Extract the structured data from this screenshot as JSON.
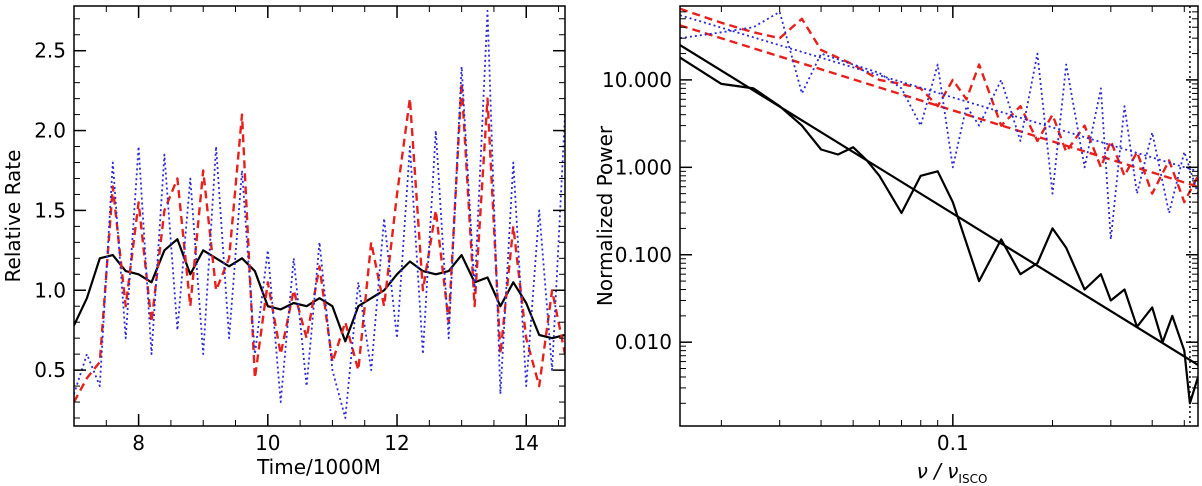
{
  "colors": {
    "black": "#000000",
    "red": "#e8201c",
    "blue": "#2a2ad6"
  },
  "chart_data": [
    {
      "type": "line",
      "panel": "left",
      "xlabel": "Time/1000M",
      "ylabel": "Relative Rate",
      "xlim": [
        7.0,
        14.6
      ],
      "ylim": [
        0.15,
        2.78
      ],
      "xticks": [
        8,
        10,
        12,
        14
      ],
      "yticks": [
        0.5,
        1.0,
        1.5,
        2.0,
        2.5
      ],
      "xtick_labels": [
        "8",
        "10",
        "12",
        "14"
      ],
      "ytick_labels": [
        "0.5",
        "1.0",
        "1.5",
        "2.0",
        "2.5"
      ],
      "series": [
        {
          "name": "solid",
          "style": "solid",
          "color": "#000000",
          "x": [
            7.0,
            7.2,
            7.4,
            7.6,
            7.8,
            8.0,
            8.2,
            8.4,
            8.6,
            8.8,
            9.0,
            9.2,
            9.4,
            9.6,
            9.8,
            10.0,
            10.2,
            10.4,
            10.6,
            10.8,
            11.0,
            11.2,
            11.4,
            11.6,
            11.8,
            12.0,
            12.2,
            12.4,
            12.6,
            12.8,
            13.0,
            13.2,
            13.4,
            13.6,
            13.8,
            14.0,
            14.2,
            14.4,
            14.6
          ],
          "y": [
            0.78,
            0.95,
            1.2,
            1.22,
            1.12,
            1.1,
            1.05,
            1.25,
            1.32,
            1.1,
            1.25,
            1.2,
            1.15,
            1.2,
            1.12,
            0.9,
            0.88,
            0.92,
            0.9,
            0.95,
            0.9,
            0.68,
            0.9,
            0.95,
            1.0,
            1.1,
            1.18,
            1.12,
            1.1,
            1.12,
            1.22,
            1.05,
            1.08,
            0.9,
            1.05,
            0.92,
            0.72,
            0.7,
            0.72
          ]
        },
        {
          "name": "dashed",
          "style": "dashed",
          "color": "#e8201c",
          "x": [
            7.0,
            7.2,
            7.4,
            7.6,
            7.8,
            8.0,
            8.2,
            8.4,
            8.6,
            8.8,
            9.0,
            9.2,
            9.4,
            9.6,
            9.8,
            10.0,
            10.2,
            10.4,
            10.6,
            10.8,
            11.0,
            11.2,
            11.4,
            11.6,
            11.8,
            12.0,
            12.2,
            12.4,
            12.6,
            12.8,
            13.0,
            13.2,
            13.4,
            13.6,
            13.8,
            14.0,
            14.2,
            14.4,
            14.6
          ],
          "y": [
            0.3,
            0.45,
            0.55,
            1.65,
            0.9,
            1.55,
            0.8,
            1.5,
            1.7,
            0.9,
            1.75,
            1.0,
            1.2,
            2.1,
            0.45,
            1.05,
            0.6,
            1.0,
            0.7,
            1.15,
            0.55,
            0.8,
            0.5,
            1.3,
            0.9,
            1.6,
            2.2,
            1.0,
            1.5,
            0.8,
            2.3,
            0.9,
            2.2,
            0.6,
            1.4,
            0.7,
            0.4,
            1.0,
            0.6
          ]
        },
        {
          "name": "dotted",
          "style": "dotted",
          "color": "#2a2ad6",
          "x": [
            7.0,
            7.2,
            7.4,
            7.6,
            7.8,
            8.0,
            8.2,
            8.4,
            8.6,
            8.8,
            9.0,
            9.2,
            9.4,
            9.6,
            9.8,
            10.0,
            10.2,
            10.4,
            10.6,
            10.8,
            11.0,
            11.2,
            11.4,
            11.6,
            11.8,
            12.0,
            12.2,
            12.4,
            12.6,
            12.8,
            13.0,
            13.2,
            13.4,
            13.6,
            13.8,
            14.0,
            14.2,
            14.4,
            14.6
          ],
          "y": [
            0.35,
            0.6,
            0.4,
            1.8,
            0.7,
            1.9,
            0.6,
            1.85,
            0.75,
            1.7,
            0.6,
            1.9,
            0.7,
            1.75,
            0.6,
            1.25,
            0.3,
            1.2,
            0.4,
            1.3,
            0.5,
            0.2,
            1.05,
            0.5,
            1.45,
            0.7,
            1.9,
            0.6,
            2.0,
            0.7,
            2.4,
            1.0,
            2.75,
            0.35,
            1.8,
            0.4,
            1.5,
            0.5,
            2.1
          ]
        }
      ]
    },
    {
      "type": "line",
      "panel": "right",
      "xscale": "log",
      "yscale": "log",
      "xlabel_main": "ν / ν",
      "xlabel_sub": "ISCO",
      "ylabel": "Normalized Power",
      "xlim": [
        0.015,
        0.55
      ],
      "ylim": [
        0.0011,
        70
      ],
      "xticks": [
        0.1
      ],
      "xtick_labels": [
        "0.1"
      ],
      "yticks": [
        0.01,
        0.1,
        1.0,
        10.0
      ],
      "ytick_labels": [
        "0.010",
        "0.100",
        "1.000",
        "10.000"
      ],
      "vline_x": 0.52,
      "series": [
        {
          "name": "solid",
          "style": "solid",
          "color": "#000000",
          "x": [
            0.015,
            0.02,
            0.025,
            0.03,
            0.035,
            0.04,
            0.045,
            0.05,
            0.055,
            0.06,
            0.07,
            0.08,
            0.09,
            0.1,
            0.12,
            0.14,
            0.16,
            0.18,
            0.2,
            0.22,
            0.25,
            0.28,
            0.3,
            0.33,
            0.36,
            0.4,
            0.43,
            0.46,
            0.5,
            0.52,
            0.55
          ],
          "y": [
            18,
            9,
            8,
            5,
            3,
            1.6,
            1.4,
            1.7,
            1.2,
            0.8,
            0.3,
            0.8,
            0.9,
            0.4,
            0.05,
            0.15,
            0.06,
            0.08,
            0.2,
            0.12,
            0.04,
            0.06,
            0.03,
            0.04,
            0.015,
            0.025,
            0.01,
            0.02,
            0.008,
            0.002,
            0.004
          ]
        },
        {
          "name": "solid-fit",
          "style": "solid",
          "color": "#000000",
          "x": [
            0.015,
            0.55
          ],
          "y": [
            25,
            0.0055
          ]
        },
        {
          "name": "dashed",
          "style": "dashed",
          "color": "#e8201c",
          "x": [
            0.015,
            0.02,
            0.025,
            0.03,
            0.035,
            0.04,
            0.05,
            0.06,
            0.07,
            0.08,
            0.09,
            0.1,
            0.11,
            0.12,
            0.14,
            0.16,
            0.18,
            0.2,
            0.22,
            0.25,
            0.28,
            0.3,
            0.33,
            0.36,
            0.4,
            0.45,
            0.5,
            0.55
          ],
          "y": [
            65,
            45,
            35,
            30,
            50,
            22,
            15,
            10,
            9,
            8,
            5,
            10,
            6,
            15,
            3,
            5,
            2,
            4,
            1.5,
            3,
            1,
            2,
            0.8,
            1.5,
            0.5,
            1.2,
            0.4,
            0.8
          ]
        },
        {
          "name": "dashed-fit",
          "style": "dashed",
          "color": "#e8201c",
          "x": [
            0.015,
            0.55
          ],
          "y": [
            42,
            0.6
          ]
        },
        {
          "name": "dotted",
          "style": "dotted",
          "color": "#2a2ad6",
          "x": [
            0.015,
            0.02,
            0.025,
            0.03,
            0.035,
            0.04,
            0.05,
            0.06,
            0.07,
            0.08,
            0.09,
            0.1,
            0.11,
            0.12,
            0.14,
            0.16,
            0.18,
            0.2,
            0.22,
            0.25,
            0.28,
            0.3,
            0.33,
            0.36,
            0.4,
            0.45,
            0.5,
            0.55
          ],
          "y": [
            30,
            35,
            40,
            60,
            7,
            20,
            15,
            12,
            8,
            3,
            15,
            1.0,
            5,
            3,
            10,
            2,
            20,
            0.5,
            15,
            1,
            8,
            0.15,
            5,
            0.5,
            2.5,
            0.3,
            1.5,
            0.5
          ]
        },
        {
          "name": "dotted-fit",
          "style": "dotted",
          "color": "#2a2ad6",
          "x": [
            0.015,
            0.55
          ],
          "y": [
            55,
            0.9
          ]
        }
      ]
    }
  ]
}
